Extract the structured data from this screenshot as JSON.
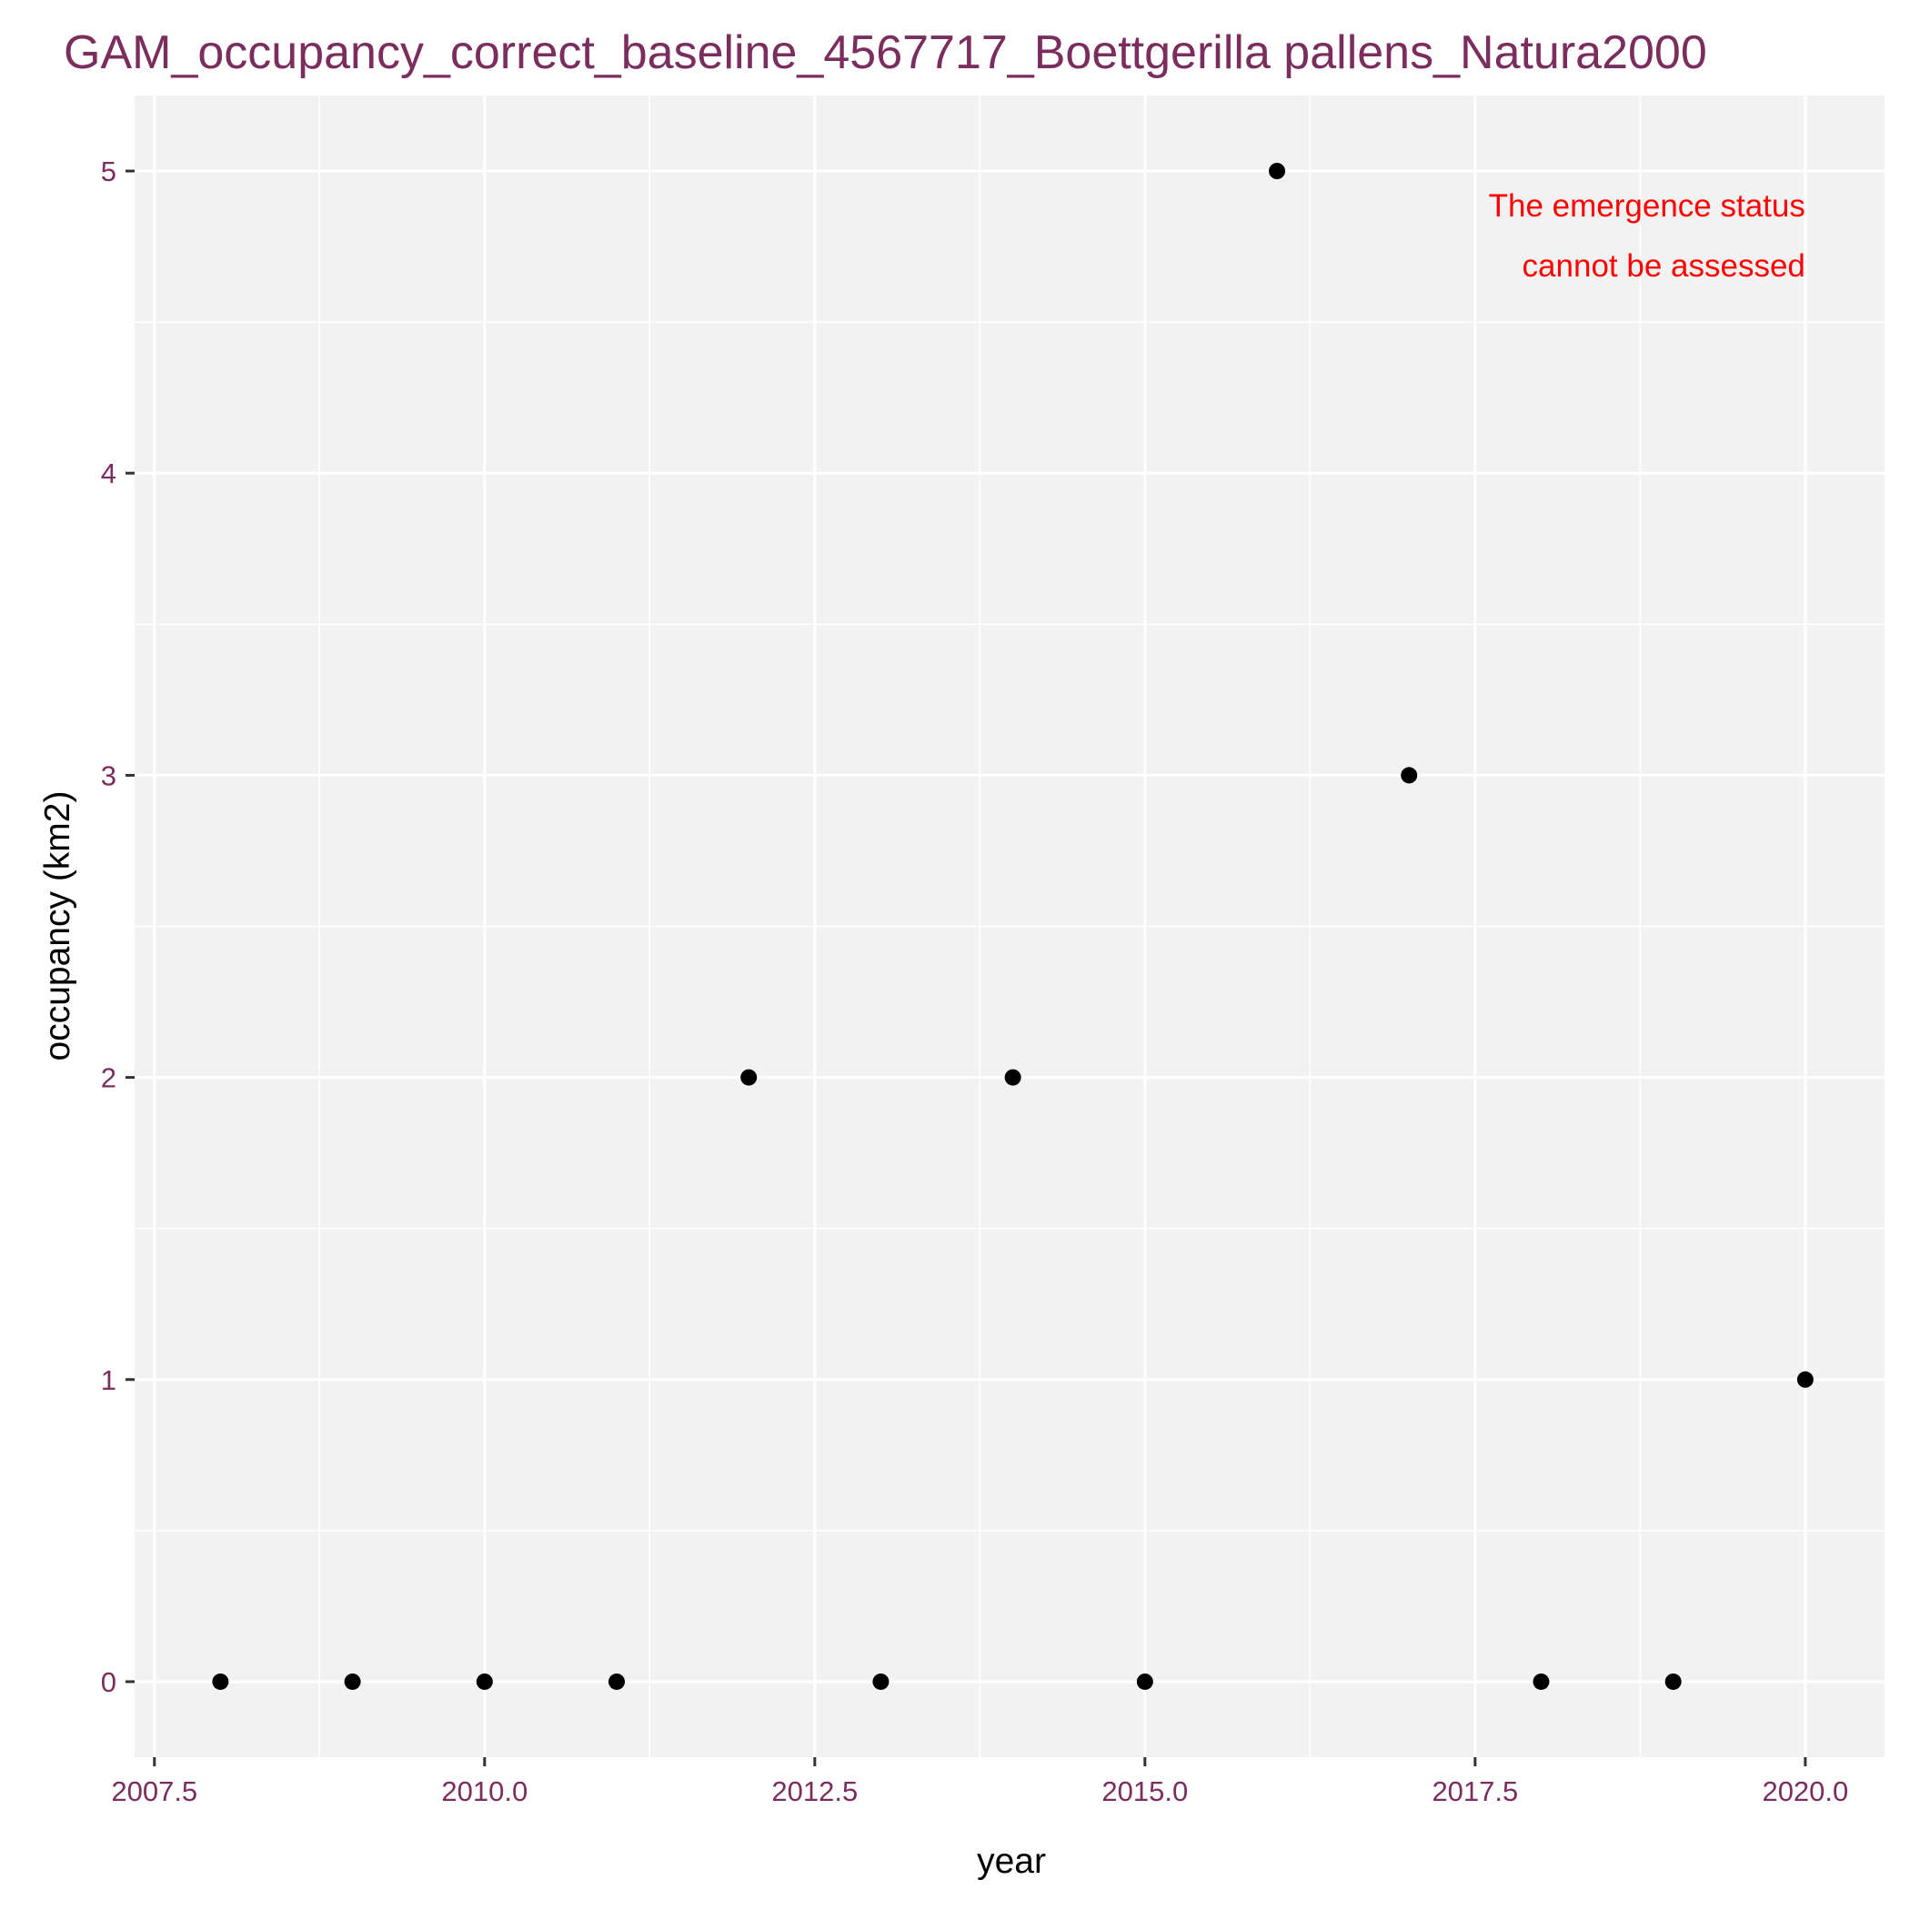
{
  "chart_data": {
    "type": "scatter",
    "title": "GAM_occupancy_correct_baseline_4567717_Boettgerilla pallens_Natura2000",
    "xlabel": "year",
    "ylabel": "occupancy (km2)",
    "x_ticks": [
      "2007.5",
      "2010.0",
      "2012.5",
      "2015.0",
      "2017.5",
      "2020.0"
    ],
    "x_tick_values": [
      2007.5,
      2010.0,
      2012.5,
      2015.0,
      2017.5,
      2020.0
    ],
    "y_ticks": [
      "0",
      "1",
      "2",
      "3",
      "4",
      "5"
    ],
    "y_tick_values": [
      0,
      1,
      2,
      3,
      4,
      5
    ],
    "xlim": [
      2007.35,
      2020.6
    ],
    "ylim": [
      -0.25,
      5.25
    ],
    "grid": true,
    "points": [
      {
        "x": 2008,
        "y": 0
      },
      {
        "x": 2009,
        "y": 0
      },
      {
        "x": 2010,
        "y": 0
      },
      {
        "x": 2011,
        "y": 0
      },
      {
        "x": 2012,
        "y": 2
      },
      {
        "x": 2013,
        "y": 0
      },
      {
        "x": 2014,
        "y": 2
      },
      {
        "x": 2015,
        "y": 0
      },
      {
        "x": 2016,
        "y": 5
      },
      {
        "x": 2017,
        "y": 3
      },
      {
        "x": 2018,
        "y": 0
      },
      {
        "x": 2019,
        "y": 0
      },
      {
        "x": 2020,
        "y": 1
      }
    ],
    "annotation": {
      "lines": [
        "The emergence status",
        "cannot be assessed"
      ],
      "color": "#ff0000"
    },
    "colors": {
      "panel": "#f2f2f2",
      "grid": "#ffffff",
      "point": "#000000",
      "tick_label": "#7b2d5e",
      "title": "#7b2d5e"
    }
  }
}
